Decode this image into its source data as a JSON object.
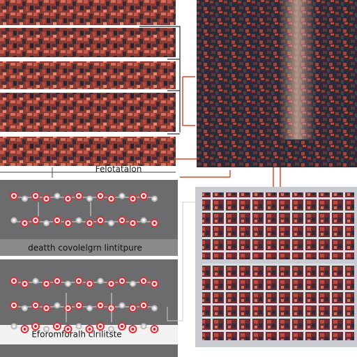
{
  "captions": {
    "top": "Felotatalon",
    "middle": "deatth covolelgrn lintitpure",
    "bottom": "Eforomforalh clrilitste"
  }
}
